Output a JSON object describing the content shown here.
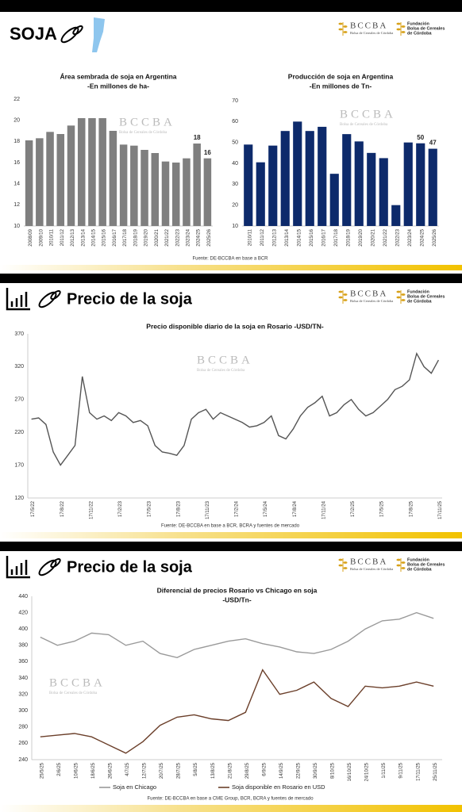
{
  "logos": {
    "bccba": "BCCBA",
    "bccba_sub": "Bolsa de Cereales de Córdoba",
    "fundacion": [
      "Fundación",
      "Bolsa de Cereales",
      "de Córdoba"
    ]
  },
  "panels": [
    {
      "title": "SOJA",
      "source": "Fuente: DE-BCCBA en base a BCR"
    },
    {
      "title": "Precio de la soja",
      "source": "Fuente: DE-BCCBA en base a BCR, BCRA y fuentes de mercado"
    },
    {
      "title": "Precio de la soja",
      "source": "Fuente: DE-BCCBA en base a CME Group, BCR, BCRA y fuentes de mercado"
    }
  ],
  "chart_data": [
    {
      "type": "bar",
      "title": "Área sembrada de soja en Argentina",
      "subtitle": "-En millones de ha-",
      "categories": [
        "2008/09",
        "2009/10",
        "2010/11",
        "2011/12",
        "2012/13",
        "2013/14",
        "2014/15",
        "2015/16",
        "2016/17",
        "2017/18",
        "2018/19",
        "2019/20",
        "2020/21",
        "2021/22",
        "2022/23",
        "2023/24",
        "2024/25",
        "2025/26"
      ],
      "values": [
        18.1,
        18.3,
        18.9,
        18.7,
        19.5,
        20.2,
        20.2,
        20.2,
        19.0,
        17.7,
        17.6,
        17.2,
        16.9,
        16.1,
        16.0,
        16.4,
        17.8,
        16.4
      ],
      "value_labels": [
        null,
        null,
        null,
        null,
        null,
        null,
        null,
        null,
        null,
        null,
        null,
        null,
        null,
        null,
        null,
        null,
        "18",
        "16"
      ],
      "color": "#7f7f7f",
      "ylim": [
        10,
        22
      ],
      "yticks": [
        10,
        12,
        14,
        16,
        18,
        20,
        22
      ],
      "grid": false
    },
    {
      "type": "bar",
      "title": "Producción de soja en Argentina",
      "subtitle": "-En millones de Tn-",
      "categories": [
        "2010/11",
        "2011/12",
        "2012/13",
        "2013/14",
        "2014/15",
        "2015/16",
        "2016/17",
        "2017/18",
        "2018/19",
        "2019/20",
        "2020/21",
        "2021/22",
        "2022/23",
        "2023/24",
        "2024/25",
        "2025/26"
      ],
      "values": [
        49,
        40.5,
        48.5,
        55.5,
        60,
        55.5,
        57.5,
        35,
        54,
        50.5,
        45,
        42.5,
        20,
        50,
        49.6,
        47
      ],
      "value_labels": [
        null,
        null,
        null,
        null,
        null,
        null,
        null,
        null,
        null,
        null,
        null,
        null,
        null,
        null,
        "50",
        "47"
      ],
      "color": "#0d2a6b",
      "ylim": [
        10,
        70
      ],
      "yticks": [
        10,
        20,
        30,
        40,
        50,
        60,
        70
      ],
      "grid": false
    },
    {
      "type": "line",
      "title": "Precio disponible diario de la soja en Rosario -USD/TN-",
      "categories": [
        "17/5/22",
        null,
        null,
        null,
        "17/8/22",
        null,
        null,
        null,
        "17/11/22",
        null,
        null,
        null,
        "17/2/23",
        null,
        null,
        null,
        "17/5/23",
        null,
        null,
        null,
        "17/8/23",
        null,
        null,
        null,
        "17/11/23",
        null,
        null,
        null,
        "17/2/24",
        null,
        null,
        null,
        "17/5/24",
        null,
        null,
        null,
        "17/8/24",
        null,
        null,
        null,
        "17/11/24",
        null,
        null,
        null,
        "17/2/25",
        null,
        null,
        null,
        "17/5/25",
        null,
        null,
        null,
        "17/8/25",
        null,
        null,
        null,
        "17/11/25"
      ],
      "values": [
        240,
        242,
        232,
        190,
        170,
        185,
        200,
        305,
        250,
        240,
        245,
        238,
        250,
        245,
        235,
        238,
        230,
        200,
        190,
        188,
        185,
        200,
        240,
        250,
        255,
        240,
        250,
        245,
        240,
        235,
        228,
        230,
        235,
        245,
        215,
        210,
        225,
        245,
        258,
        265,
        275,
        245,
        250,
        262,
        270,
        255,
        245,
        250,
        260,
        270,
        285,
        290,
        300,
        340,
        320,
        310,
        330
      ],
      "color": "#555555",
      "ylim": [
        120,
        370
      ],
      "yticks": [
        120,
        170,
        220,
        270,
        320,
        370
      ],
      "grid": false
    },
    {
      "type": "line",
      "title": "Diferencial de precios Rosario vs Chicago en soja",
      "subtitle": "-USD/Tn-",
      "categories": [
        "25/5/25",
        "2/6/25",
        "10/6/25",
        "18/6/25",
        "26/6/25",
        "4/7/25",
        "12/7/25",
        "20/7/25",
        "28/7/25",
        "5/8/25",
        "13/8/25",
        "21/8/25",
        "29/8/25",
        "6/9/25",
        "14/9/25",
        "22/9/25",
        "30/9/25",
        "8/10/25",
        "16/10/25",
        "24/10/25",
        "1/11/25",
        "9/11/25",
        "17/11/25",
        "25/11/25"
      ],
      "series": [
        {
          "name": "Soja en Chicago",
          "color": "#9a9a9a",
          "values": [
            390,
            380,
            385,
            395,
            393,
            380,
            385,
            370,
            365,
            375,
            380,
            385,
            388,
            382,
            378,
            372,
            370,
            375,
            385,
            400,
            410,
            412,
            420,
            413
          ]
        },
        {
          "name": "Soja disponible en Rosario en USD",
          "color": "#6b3f2a",
          "values": [
            268,
            270,
            272,
            268,
            258,
            248,
            262,
            282,
            292,
            295,
            290,
            288,
            298,
            350,
            320,
            325,
            335,
            315,
            305,
            330,
            328,
            330,
            335,
            330
          ]
        }
      ],
      "ylim": [
        240,
        440
      ],
      "yticks": [
        240,
        260,
        280,
        300,
        320,
        340,
        360,
        380,
        400,
        420,
        440
      ],
      "grid": false,
      "legend": "bottom"
    }
  ]
}
